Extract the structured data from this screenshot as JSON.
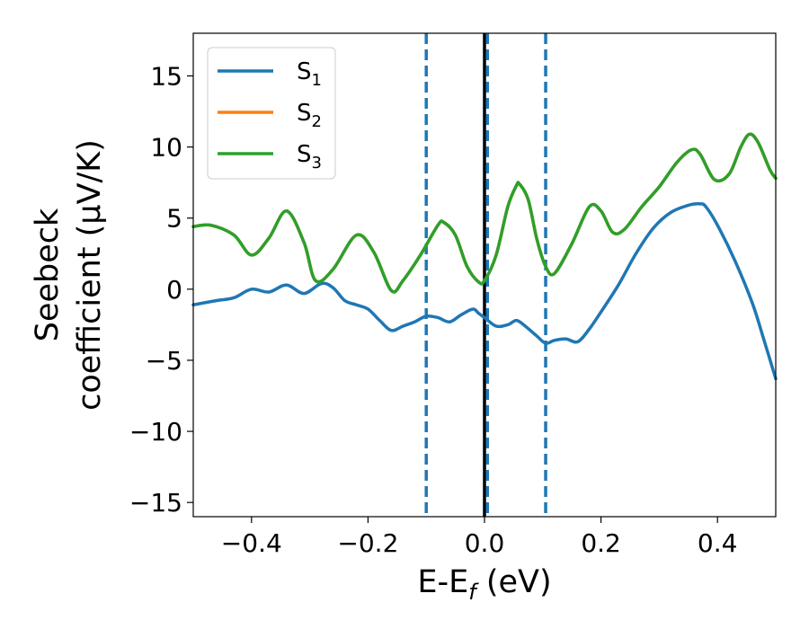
{
  "chart_data": {
    "type": "line",
    "xlabel": {
      "main": "E-E",
      "sub": "f",
      "unit": " (eV)"
    },
    "ylabel": {
      "line1": "Seebeck",
      "line2": "coefficient  (μV/K)"
    },
    "xlim": [
      -0.5,
      0.5
    ],
    "ylim": [
      -16,
      18
    ],
    "xticks": [
      -0.4,
      -0.2,
      0.0,
      0.2,
      0.4
    ],
    "xtick_labels": [
      "−0.4",
      "−0.2",
      "0.0",
      "0.2",
      "0.4"
    ],
    "yticks": [
      -15,
      -10,
      -5,
      0,
      5,
      10,
      15
    ],
    "ytick_labels": [
      "−15",
      "−10",
      "−5",
      "0",
      "5",
      "10",
      "15"
    ],
    "grid": false,
    "legend_placement": "top-left",
    "vertical_lines": [
      {
        "x": -0.1,
        "style": "dashed",
        "color": "#1f77b4"
      },
      {
        "x": 0.0,
        "style": "solid",
        "color": "#000000"
      },
      {
        "x": 0.005,
        "style": "dashed",
        "color": "#1f77b4"
      },
      {
        "x": 0.105,
        "style": "dashed",
        "color": "#1f77b4"
      }
    ],
    "series": [
      {
        "name": "S",
        "sub": "1",
        "color": "#1f77b4",
        "x": [
          -0.5,
          -0.46,
          -0.43,
          -0.4,
          -0.37,
          -0.34,
          -0.31,
          -0.28,
          -0.26,
          -0.24,
          -0.22,
          -0.2,
          -0.18,
          -0.16,
          -0.14,
          -0.12,
          -0.1,
          -0.08,
          -0.06,
          -0.04,
          -0.02,
          -0.01,
          0.0,
          0.02,
          0.04,
          0.055,
          0.07,
          0.09,
          0.105,
          0.12,
          0.14,
          0.16,
          0.18,
          0.2,
          0.23,
          0.26,
          0.29,
          0.32,
          0.35,
          0.37,
          0.38,
          0.4,
          0.43,
          0.46,
          0.48,
          0.5
        ],
        "y": [
          -1.1,
          -0.8,
          -0.6,
          0.0,
          -0.2,
          0.3,
          -0.3,
          0.4,
          0.1,
          -0.8,
          -1.1,
          -1.4,
          -2.2,
          -2.9,
          -2.6,
          -2.3,
          -1.9,
          -2.0,
          -2.3,
          -1.8,
          -1.4,
          -1.7,
          -2.0,
          -2.6,
          -2.5,
          -2.2,
          -2.6,
          -3.3,
          -3.8,
          -3.6,
          -3.5,
          -3.7,
          -2.8,
          -1.6,
          0.3,
          2.5,
          4.3,
          5.4,
          5.9,
          6.0,
          5.8,
          4.5,
          2.0,
          -1.0,
          -3.6,
          -6.3
        ]
      },
      {
        "name": "S",
        "sub": "2",
        "color": "#ff7f0e",
        "x": [
          -0.5,
          -0.47,
          -0.43,
          -0.4,
          -0.37,
          -0.34,
          -0.31,
          -0.29,
          -0.26,
          -0.22,
          -0.19,
          -0.16,
          -0.14,
          -0.11,
          -0.08,
          -0.07,
          -0.05,
          -0.03,
          -0.01,
          0.0,
          0.02,
          0.04,
          0.055,
          0.06,
          0.075,
          0.09,
          0.105,
          0.12,
          0.15,
          0.18,
          0.2,
          0.22,
          0.24,
          0.27,
          0.3,
          0.33,
          0.355,
          0.37,
          0.395,
          0.42,
          0.44,
          0.455,
          0.47,
          0.49,
          0.5
        ],
        "y": [
          4.4,
          4.5,
          3.8,
          2.4,
          3.6,
          5.5,
          3.3,
          0.6,
          1.4,
          3.8,
          2.6,
          -0.1,
          0.6,
          2.4,
          4.5,
          4.7,
          3.8,
          1.6,
          0.5,
          0.6,
          2.4,
          5.8,
          7.3,
          7.4,
          6.3,
          3.5,
          1.6,
          1.1,
          3.2,
          5.8,
          5.5,
          4.0,
          4.2,
          5.8,
          7.2,
          8.9,
          9.8,
          9.5,
          7.7,
          8.1,
          10.0,
          10.9,
          10.3,
          8.4,
          7.8
        ]
      },
      {
        "name": "S",
        "sub": "3",
        "color": "#2ca02c",
        "x": [
          -0.5,
          -0.47,
          -0.43,
          -0.4,
          -0.37,
          -0.34,
          -0.31,
          -0.29,
          -0.26,
          -0.22,
          -0.19,
          -0.16,
          -0.14,
          -0.11,
          -0.08,
          -0.07,
          -0.05,
          -0.03,
          -0.01,
          0.0,
          0.02,
          0.04,
          0.055,
          0.06,
          0.075,
          0.09,
          0.105,
          0.12,
          0.15,
          0.18,
          0.2,
          0.22,
          0.24,
          0.27,
          0.3,
          0.33,
          0.355,
          0.37,
          0.395,
          0.42,
          0.44,
          0.455,
          0.47,
          0.49,
          0.5
        ],
        "y": [
          4.4,
          4.5,
          3.8,
          2.4,
          3.6,
          5.5,
          3.3,
          0.6,
          1.4,
          3.8,
          2.6,
          -0.1,
          0.6,
          2.4,
          4.5,
          4.7,
          3.8,
          1.6,
          0.5,
          0.6,
          2.4,
          5.8,
          7.3,
          7.4,
          6.3,
          3.5,
          1.6,
          1.1,
          3.2,
          5.8,
          5.5,
          4.0,
          4.2,
          5.8,
          7.2,
          8.9,
          9.8,
          9.5,
          7.7,
          8.1,
          10.0,
          10.9,
          10.3,
          8.4,
          7.8
        ]
      }
    ]
  }
}
